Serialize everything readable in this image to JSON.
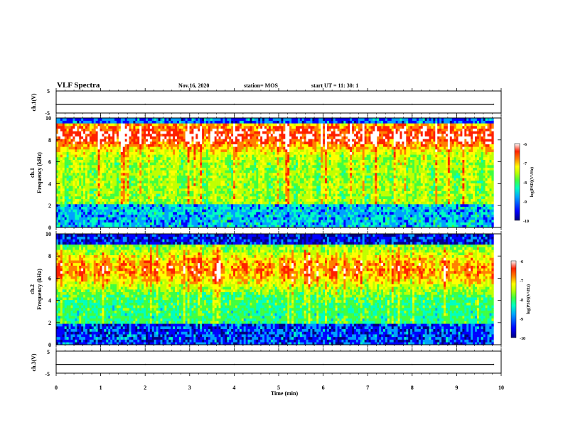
{
  "header": {
    "title": "VLF Spectra",
    "date": "Nov.16, 2020",
    "station": "station= MOS",
    "start": "start  UT =   11: 30: 1"
  },
  "chart_data": [
    {
      "type": "line",
      "name": "ch1-waveform",
      "ylabel": "ch.1(V)",
      "ylim": [
        -5,
        5
      ],
      "yticks": [
        "5",
        "-5"
      ],
      "xlim": [
        0,
        10
      ],
      "x": [
        0,
        2,
        4,
        6,
        8,
        9.83
      ],
      "y": [
        -1,
        -1,
        -1,
        -1,
        -1,
        -1
      ]
    },
    {
      "type": "heatmap",
      "name": "ch1-spectrogram",
      "panel": "ch.1",
      "ylabel": "Frequency  (kHz)",
      "ylim": [
        0,
        10
      ],
      "yticks": [
        "0",
        "2",
        "4",
        "6",
        "8",
        "10"
      ],
      "xlim": [
        0,
        10
      ],
      "data_end": 9.83,
      "colorbar": {
        "label": "log(PSD)(V²/Hz)",
        "min": -10,
        "max": -6,
        "ticks": [
          "-6",
          "-7",
          "-8",
          "-9",
          "-10"
        ]
      }
    },
    {
      "type": "heatmap",
      "name": "ch2-spectrogram",
      "panel": "ch.2",
      "ylabel": "Frequency  (kHz)",
      "ylim": [
        0,
        10
      ],
      "yticks": [
        "0",
        "2",
        "4",
        "6",
        "8",
        "10"
      ],
      "xlim": [
        0,
        10
      ],
      "data_end": 9.83,
      "colorbar": {
        "label": "log(PSD)(V²/Hz)",
        "min": -10,
        "max": -6,
        "ticks": [
          "-6",
          "-7",
          "-8",
          "-9",
          "-10"
        ]
      }
    },
    {
      "type": "line",
      "name": "ch3-waveform",
      "ylabel": "ch.3(V)",
      "ylim": [
        -5,
        5
      ],
      "yticks": [
        "5",
        "-5"
      ],
      "xlim": [
        0,
        10
      ],
      "x": [
        0,
        2,
        4,
        6,
        8,
        9.83
      ],
      "y": [
        -1,
        -1,
        -1,
        -1,
        -1,
        -1
      ]
    }
  ],
  "xaxis": {
    "label": "Time  (min)",
    "ticks": [
      "0",
      "1",
      "2",
      "3",
      "4",
      "5",
      "6",
      "7",
      "8",
      "9",
      "10"
    ]
  },
  "colors": {
    "colormap": [
      "#00007f",
      "#0000ff",
      "#00a0ff",
      "#00ffc0",
      "#40ff40",
      "#c0ff00",
      "#ffff00",
      "#ff8000",
      "#ff2000",
      "#ffffff"
    ]
  }
}
